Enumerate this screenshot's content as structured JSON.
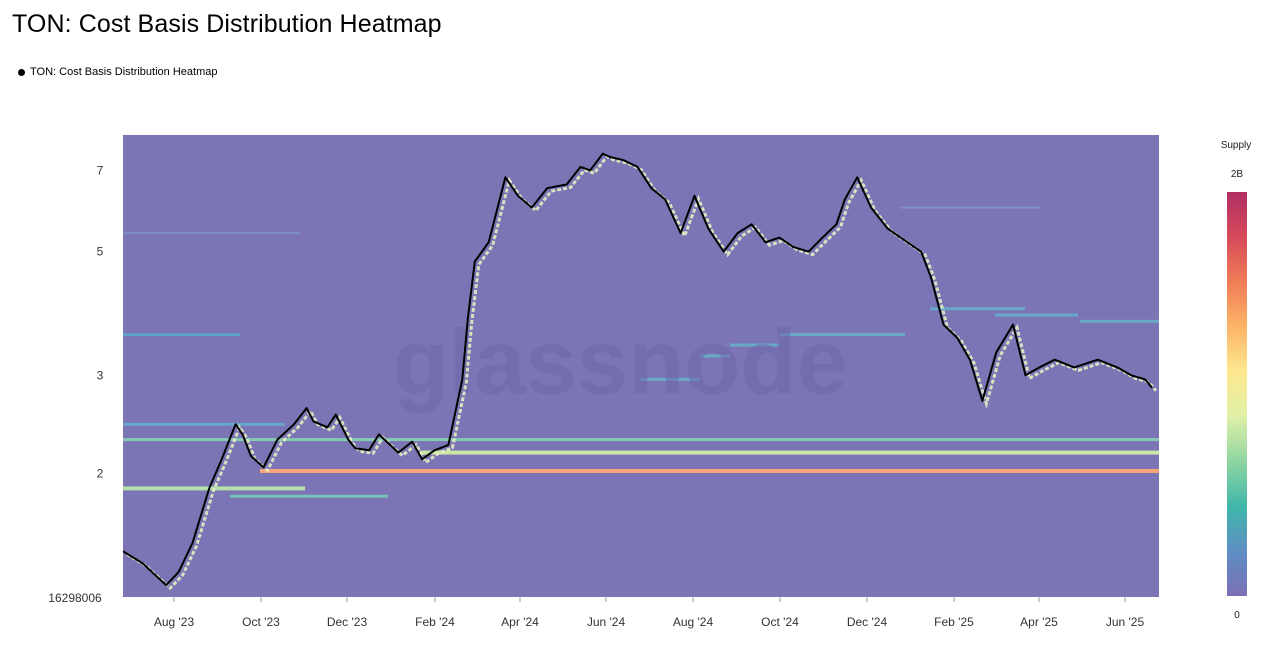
{
  "chart_data": {
    "type": "heatmap",
    "title": "TON: Cost Basis Distribution Heatmap",
    "legend": [
      {
        "name": "TON: Cost Basis Distribution Heatmap",
        "color": "#000000"
      }
    ],
    "watermark": "glassnode",
    "x_axis": {
      "ticks": [
        "Aug '23",
        "Oct '23",
        "Dec '23",
        "Feb '24",
        "Apr '24",
        "Jun '24",
        "Aug '24",
        "Oct '24",
        "Dec '24",
        "Feb '25",
        "Apr '25",
        "Jun '25"
      ],
      "range": [
        "2023-07-01",
        "2025-07-15"
      ]
    },
    "y_axis": {
      "scale": "log",
      "ticks": [
        "7",
        "5",
        "3",
        "2"
      ],
      "tick_values": [
        7,
        5,
        3,
        2
      ],
      "bottom_label": "16298006",
      "range": [
        1.2,
        8.1
      ]
    },
    "colorbar": {
      "title": "Supply",
      "max_label": "2B",
      "min_label": "0",
      "colors": [
        "#7c6fb6",
        "#5e8fc4",
        "#40b7a9",
        "#8fd5a1",
        "#dff0a8",
        "#fee890",
        "#fcb466",
        "#f07c56",
        "#d54a5a",
        "#b02e63"
      ]
    },
    "background_color": "#7b75b5",
    "price_series": {
      "name": "TON price",
      "x": [
        "2023-07-01",
        "2023-07-15",
        "2023-08-01",
        "2023-08-10",
        "2023-08-20",
        "2023-09-01",
        "2023-09-10",
        "2023-09-20",
        "2023-09-25",
        "2023-10-01",
        "2023-10-10",
        "2023-10-20",
        "2023-11-01",
        "2023-11-10",
        "2023-11-15",
        "2023-11-25",
        "2023-12-01",
        "2023-12-10",
        "2023-12-15",
        "2023-12-25",
        "2024-01-01",
        "2024-01-15",
        "2024-01-25",
        "2024-02-01",
        "2024-02-10",
        "2024-02-20",
        "2024-03-01",
        "2024-03-05",
        "2024-03-10",
        "2024-03-20",
        "2024-04-01",
        "2024-04-10",
        "2024-04-20",
        "2024-05-01",
        "2024-05-15",
        "2024-05-25",
        "2024-06-01",
        "2024-06-10",
        "2024-06-15",
        "2024-06-25",
        "2024-07-05",
        "2024-07-15",
        "2024-07-25",
        "2024-08-05",
        "2024-08-15",
        "2024-08-25",
        "2024-09-05",
        "2024-09-15",
        "2024-09-25",
        "2024-10-05",
        "2024-10-15",
        "2024-10-25",
        "2024-11-05",
        "2024-11-15",
        "2024-11-25",
        "2024-12-01",
        "2024-12-10",
        "2024-12-20",
        "2025-01-01",
        "2025-01-15",
        "2025-01-25",
        "2025-02-01",
        "2025-02-10",
        "2025-02-20",
        "2025-03-01",
        "2025-03-10",
        "2025-03-20",
        "2025-04-01",
        "2025-04-10",
        "2025-04-20",
        "2025-05-01",
        "2025-05-15",
        "2025-06-01",
        "2025-06-15",
        "2025-06-25",
        "2025-07-05",
        "2025-07-10"
      ],
      "y": [
        1.45,
        1.38,
        1.26,
        1.33,
        1.5,
        1.88,
        2.12,
        2.45,
        2.35,
        2.15,
        2.05,
        2.3,
        2.45,
        2.62,
        2.48,
        2.42,
        2.55,
        2.3,
        2.22,
        2.2,
        2.35,
        2.18,
        2.28,
        2.12,
        2.2,
        2.25,
        2.95,
        3.8,
        4.8,
        5.2,
        6.8,
        6.3,
        6.0,
        6.5,
        6.6,
        7.1,
        7.0,
        7.5,
        7.4,
        7.3,
        7.1,
        6.5,
        6.2,
        5.4,
        6.3,
        5.5,
        5.0,
        5.4,
        5.6,
        5.2,
        5.3,
        5.1,
        5.0,
        5.3,
        5.6,
        6.2,
        6.8,
        6.0,
        5.5,
        5.2,
        5.0,
        4.5,
        3.7,
        3.5,
        3.2,
        2.7,
        3.3,
        3.7,
        3.0,
        3.1,
        3.2,
        3.1,
        3.2,
        3.1,
        3.0,
        2.95,
        2.85
      ]
    }
  }
}
